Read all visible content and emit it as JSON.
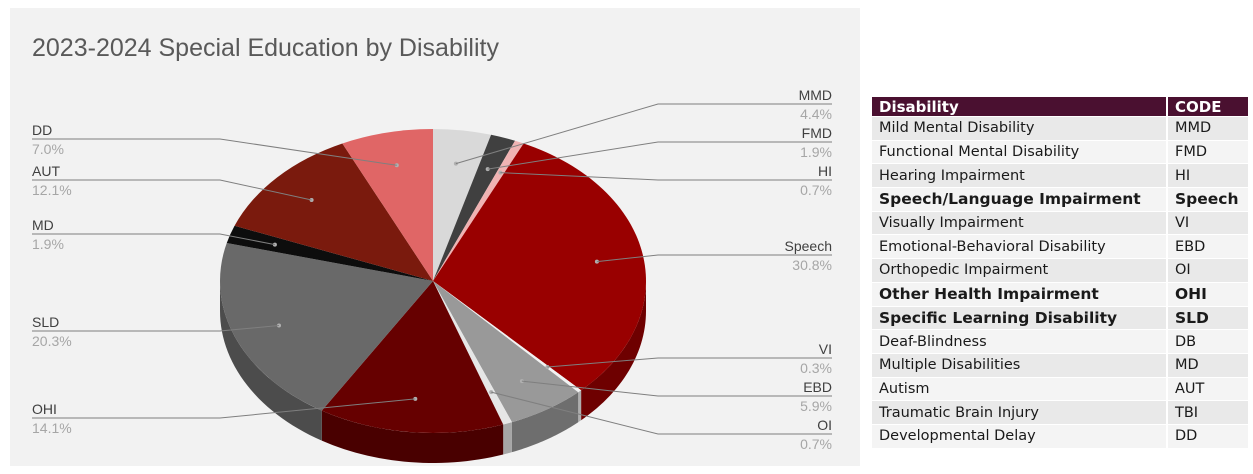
{
  "chart_data": {
    "type": "pie",
    "title": "2023-2024 Special Education by Disability",
    "slices": [
      {
        "label": "MMD",
        "value": 4.4,
        "display": "4.4%",
        "color": "#d9d9d9"
      },
      {
        "label": "FMD",
        "value": 1.9,
        "display": "1.9%",
        "color": "#404040"
      },
      {
        "label": "HI",
        "value": 0.7,
        "display": "0.7%",
        "color": "#f0b3b3"
      },
      {
        "label": "Speech",
        "value": 30.8,
        "display": "30.8%",
        "color": "#990000"
      },
      {
        "label": "VI",
        "value": 0.3,
        "display": "0.3%",
        "color": "#f2f2f2"
      },
      {
        "label": "EBD",
        "value": 5.9,
        "display": "5.9%",
        "color": "#999999"
      },
      {
        "label": "OI",
        "value": 0.7,
        "display": "0.7%",
        "color": "#e6e6e6"
      },
      {
        "label": "OHI",
        "value": 14.1,
        "display": "14.1%",
        "color": "#660000"
      },
      {
        "label": "SLD",
        "value": 20.3,
        "display": "20.3%",
        "color": "#696969"
      },
      {
        "label": "MD",
        "value": 1.9,
        "display": "1.9%",
        "color": "#0d0d0d"
      },
      {
        "label": "AUT",
        "value": 12.1,
        "display": "12.1%",
        "color": "#7a1a0d"
      },
      {
        "label": "DD",
        "value": 7.0,
        "display": "7.0%",
        "color": "#e06666"
      }
    ]
  },
  "table": {
    "headers": [
      "Disability",
      "CODE"
    ],
    "rows": [
      {
        "name": "Mild Mental Disability",
        "code": "MMD",
        "bold": false
      },
      {
        "name": "Functional Mental Disability",
        "code": "FMD",
        "bold": false
      },
      {
        "name": "Hearing Impairment",
        "code": "HI",
        "bold": false
      },
      {
        "name": "Speech/Language Impairment",
        "code": "Speech",
        "bold": true
      },
      {
        "name": "Visually Impairment",
        "code": "VI",
        "bold": false
      },
      {
        "name": "Emotional-Behavioral Disability",
        "code": "EBD",
        "bold": false
      },
      {
        "name": "Orthopedic Impairment",
        "code": "OI",
        "bold": false
      },
      {
        "name": "Other Health Impairment",
        "code": "OHI",
        "bold": true
      },
      {
        "name": "Specific Learning Disability",
        "code": "SLD",
        "bold": true
      },
      {
        "name": "Deaf-Blindness",
        "code": "DB",
        "bold": false
      },
      {
        "name": "Multiple Disabilities",
        "code": "MD",
        "bold": false
      },
      {
        "name": "Autism",
        "code": "AUT",
        "bold": false
      },
      {
        "name": "Traumatic Brain Injury",
        "code": "TBI",
        "bold": false
      },
      {
        "name": "Developmental Delay",
        "code": "DD",
        "bold": false
      }
    ]
  }
}
